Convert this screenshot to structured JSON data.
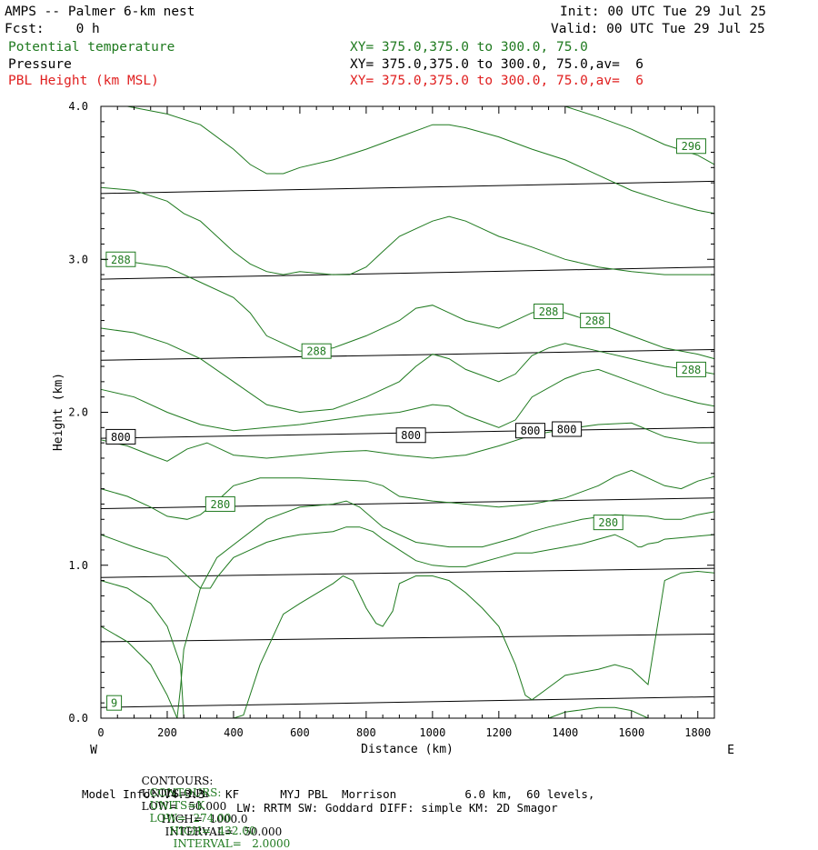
{
  "header": {
    "title": "AMPS -- Palmer 6-km nest",
    "fcst": "Fcst:    0 h",
    "init": "Init: 00 UTC Tue 29 Jul 25",
    "valid": "Valid: 00 UTC Tue 29 Jul 25",
    "fields": [
      {
        "name": "Potential temperature",
        "xy": "XY= 375.0,375.0 to 300.0, 75.0",
        "color": "#1f7a1f"
      },
      {
        "name": "Pressure",
        "xy": "XY= 375.0,375.0 to 300.0, 75.0,av=  6",
        "color": "#000000"
      },
      {
        "name": "PBL Height (km MSL)",
        "xy": "XY= 375.0,375.0 to 300.0, 75.0,av=  6",
        "color": "#e02020"
      }
    ]
  },
  "chart_data": {
    "type": "line",
    "title": "AMPS -- Palmer 6-km nest",
    "xlabel": "Distance (km)",
    "ylabel": "Height (km)",
    "xlim": [
      0,
      1850
    ],
    "ylim": [
      0,
      4.0
    ],
    "x_ticks": [
      "0",
      "200",
      "400",
      "600",
      "800",
      "1000",
      "1200",
      "1400",
      "1600",
      "1800"
    ],
    "y_ticks": [
      "0.0",
      "1.0",
      "2.0",
      "3.0",
      "4.0"
    ],
    "x_ends": {
      "left": "W",
      "right": "E"
    },
    "pressure_isobars": {
      "color": "#000000",
      "units": "hPa",
      "lines": [
        {
          "x": [
            0,
            1850
          ],
          "y": [
            0.07,
            0.14
          ]
        },
        {
          "x": [
            0,
            1850
          ],
          "y": [
            0.5,
            0.55
          ]
        },
        {
          "x": [
            0,
            1850
          ],
          "y": [
            0.92,
            0.98
          ]
        },
        {
          "x": [
            0,
            1850
          ],
          "y": [
            1.37,
            1.44
          ]
        },
        {
          "x": [
            0,
            1850
          ],
          "y": [
            1.83,
            1.9
          ]
        },
        {
          "x": [
            0,
            1850
          ],
          "y": [
            2.34,
            2.41
          ]
        },
        {
          "x": [
            0,
            1850
          ],
          "y": [
            2.87,
            2.95
          ]
        },
        {
          "x": [
            0,
            1850
          ],
          "y": [
            3.43,
            3.51
          ]
        }
      ],
      "labels": [
        {
          "text": "800",
          "x": 60,
          "y": 1.84
        },
        {
          "text": "800",
          "x": 935,
          "y": 1.85
        },
        {
          "text": "800",
          "x": 1295,
          "y": 1.88
        },
        {
          "text": "800",
          "x": 1405,
          "y": 1.89
        }
      ]
    },
    "theta_contours": {
      "color": "#1f7a1f",
      "units": "K",
      "lines": [
        {
          "x": [
            230,
            240,
            250,
            300,
            350,
            500,
            600,
            700,
            740,
            780,
            850,
            950,
            1050,
            1150,
            1250,
            1300,
            1350,
            1450,
            1550,
            1650,
            1700,
            1750,
            1800,
            1850
          ],
          "y": [
            0.0,
            0.2,
            0.45,
            0.85,
            1.05,
            1.3,
            1.38,
            1.4,
            1.42,
            1.38,
            1.25,
            1.15,
            1.12,
            1.12,
            1.18,
            1.22,
            1.25,
            1.3,
            1.33,
            1.32,
            1.3,
            1.3,
            1.33,
            1.35
          ]
        },
        {
          "x": [
            0,
            80,
            150,
            200,
            260,
            300,
            340,
            400,
            480,
            600,
            700,
            800,
            850,
            900,
            1000,
            1100,
            1200,
            1300,
            1400,
            1500,
            1550,
            1600,
            1700,
            1750,
            1800,
            1850
          ],
          "y": [
            1.5,
            1.45,
            1.38,
            1.32,
            1.3,
            1.33,
            1.4,
            1.52,
            1.57,
            1.57,
            1.56,
            1.55,
            1.52,
            1.45,
            1.42,
            1.4,
            1.38,
            1.4,
            1.44,
            1.52,
            1.58,
            1.62,
            1.52,
            1.5,
            1.55,
            1.58
          ]
        },
        {
          "x": [
            0,
            80,
            150,
            200,
            260,
            320,
            400,
            500,
            600,
            700,
            800,
            900,
            1000,
            1100,
            1200,
            1300,
            1400,
            1500,
            1600,
            1700,
            1800,
            1850
          ],
          "y": [
            1.82,
            1.78,
            1.72,
            1.68,
            1.76,
            1.8,
            1.72,
            1.7,
            1.72,
            1.74,
            1.75,
            1.72,
            1.7,
            1.72,
            1.78,
            1.85,
            1.89,
            1.92,
            1.93,
            1.84,
            1.8,
            1.8
          ]
        },
        {
          "x": [
            0,
            100,
            200,
            300,
            400,
            500,
            600,
            700,
            800,
            900,
            1000,
            1050,
            1100,
            1200,
            1250,
            1300,
            1400,
            1450,
            1500,
            1600,
            1700,
            1800,
            1850
          ],
          "y": [
            2.15,
            2.1,
            2.0,
            1.92,
            1.88,
            1.9,
            1.92,
            1.95,
            1.98,
            2.0,
            2.05,
            2.04,
            1.98,
            1.9,
            1.95,
            2.1,
            2.22,
            2.26,
            2.28,
            2.2,
            2.12,
            2.06,
            2.04
          ]
        },
        {
          "x": [
            0,
            100,
            200,
            300,
            400,
            500,
            600,
            700,
            800,
            900,
            950,
            1000,
            1050,
            1100,
            1200,
            1250,
            1300,
            1350,
            1400,
            1500,
            1600,
            1700,
            1800,
            1850
          ],
          "y": [
            2.55,
            2.52,
            2.45,
            2.35,
            2.2,
            2.05,
            2.0,
            2.02,
            2.1,
            2.2,
            2.3,
            2.38,
            2.35,
            2.28,
            2.2,
            2.25,
            2.37,
            2.42,
            2.45,
            2.4,
            2.35,
            2.3,
            2.27,
            2.25
          ]
        },
        {
          "x": [
            0,
            100,
            200,
            300,
            400,
            450,
            500,
            600,
            700,
            800,
            900,
            950,
            1000,
            1050,
            1100,
            1200,
            1250,
            1300,
            1350,
            1400,
            1500,
            1600,
            1700,
            1800,
            1850
          ],
          "y": [
            3.0,
            2.98,
            2.95,
            2.85,
            2.75,
            2.65,
            2.5,
            2.4,
            2.42,
            2.5,
            2.6,
            2.68,
            2.7,
            2.65,
            2.6,
            2.55,
            2.6,
            2.65,
            2.67,
            2.65,
            2.58,
            2.5,
            2.42,
            2.38,
            2.35
          ]
        },
        {
          "x": [
            0,
            100,
            200,
            250,
            300,
            350,
            400,
            450,
            500,
            550,
            600,
            700,
            750,
            800,
            850,
            900,
            1000,
            1050,
            1100,
            1200,
            1300,
            1400,
            1500,
            1600,
            1700,
            1800,
            1850
          ],
          "y": [
            3.47,
            3.45,
            3.38,
            3.3,
            3.25,
            3.15,
            3.05,
            2.97,
            2.92,
            2.9,
            2.92,
            2.9,
            2.9,
            2.95,
            3.05,
            3.15,
            3.25,
            3.28,
            3.25,
            3.15,
            3.08,
            3.0,
            2.95,
            2.92,
            2.9,
            2.9,
            2.9
          ]
        },
        {
          "x": [
            80,
            200,
            300,
            400,
            450,
            500,
            550,
            600,
            700,
            800,
            900,
            1000,
            1050,
            1100,
            1200,
            1300,
            1400,
            1500,
            1600,
            1700,
            1800,
            1850
          ],
          "y": [
            4.0,
            3.95,
            3.88,
            3.72,
            3.62,
            3.56,
            3.56,
            3.6,
            3.65,
            3.72,
            3.8,
            3.88,
            3.88,
            3.86,
            3.8,
            3.72,
            3.65,
            3.55,
            3.45,
            3.38,
            3.32,
            3.3
          ]
        },
        {
          "x": [
            1400,
            1500,
            1600,
            1700,
            1800,
            1850
          ],
          "y": [
            4.0,
            3.93,
            3.85,
            3.75,
            3.68,
            3.62
          ]
        },
        {
          "x": [
            0,
            100,
            200,
            250,
            300,
            330,
            350,
            400,
            450,
            500,
            550,
            600,
            700,
            740,
            780,
            820,
            850,
            900,
            950,
            1000,
            1050,
            1100,
            1150,
            1200,
            1250,
            1300,
            1350,
            1400,
            1450,
            1500,
            1550,
            1600,
            1620,
            1630,
            1650,
            1680,
            1700,
            1750,
            1800,
            1850
          ],
          "y": [
            1.2,
            1.12,
            1.05,
            0.95,
            0.85,
            0.85,
            0.92,
            1.05,
            1.1,
            1.15,
            1.18,
            1.2,
            1.22,
            1.25,
            1.25,
            1.22,
            1.17,
            1.1,
            1.03,
            1.0,
            0.99,
            0.99,
            1.02,
            1.05,
            1.08,
            1.08,
            1.1,
            1.12,
            1.14,
            1.17,
            1.2,
            1.15,
            1.12,
            1.12,
            1.14,
            1.15,
            1.17,
            1.18,
            1.19,
            1.2
          ]
        },
        {
          "x": [
            0,
            80,
            150,
            200,
            240,
            250,
            300,
            350,
            400,
            430,
            480,
            550,
            600,
            700,
            730,
            760,
            800,
            830,
            850,
            880,
            900,
            950,
            1000,
            1050,
            1100,
            1150,
            1200,
            1250,
            1280,
            1300,
            1350,
            1400,
            1450,
            1500,
            1550,
            1600,
            1650,
            1700,
            1750,
            1800,
            1850
          ],
          "y": [
            0.9,
            0.85,
            0.75,
            0.6,
            0.35,
            0.0,
            0.0,
            0.0,
            0.0,
            0.02,
            0.35,
            0.68,
            0.75,
            0.88,
            0.93,
            0.9,
            0.72,
            0.62,
            0.6,
            0.7,
            0.88,
            0.93,
            0.93,
            0.9,
            0.82,
            0.72,
            0.6,
            0.35,
            0.15,
            0.12,
            0.2,
            0.28,
            0.3,
            0.32,
            0.35,
            0.32,
            0.22,
            0.9,
            0.95,
            0.96,
            0.95
          ]
        },
        {
          "x": [
            0,
            80,
            150,
            200,
            220,
            230
          ],
          "y": [
            0.6,
            0.5,
            0.35,
            0.15,
            0.05,
            0.0
          ]
        },
        {
          "x": [
            1350,
            1400,
            1500,
            1550,
            1600,
            1650
          ],
          "y": [
            0.0,
            0.04,
            0.07,
            0.07,
            0.05,
            0.0
          ]
        }
      ],
      "labels": [
        {
          "text": "296",
          "x": 1780,
          "y": 3.74
        },
        {
          "text": "288",
          "x": 60,
          "y": 3.0
        },
        {
          "text": "288",
          "x": 1350,
          "y": 2.66
        },
        {
          "text": "288",
          "x": 1490,
          "y": 2.6
        },
        {
          "text": "288",
          "x": 650,
          "y": 2.4
        },
        {
          "text": "288",
          "x": 1780,
          "y": 2.28
        },
        {
          "text": "280",
          "x": 360,
          "y": 1.4
        },
        {
          "text": "280",
          "x": 1530,
          "y": 1.28
        },
        {
          "text": "9",
          "x": 40,
          "y": 0.1
        }
      ]
    },
    "pbl_height": {
      "color": "#e02020",
      "label": "PBL Height (km MSL)"
    }
  },
  "footer": {
    "pressure_contours": {
      "label": "CONTOURS:",
      "units": "UNITS=hPa",
      "low": "LOW=   50.000",
      "high": "HIGH=  1000.0",
      "interval": "INTERVAL=   50.000"
    },
    "theta_contours": {
      "label": "CONTOURS:",
      "units": "UNITS=K",
      "low": "LOW=  274.00",
      "high": "HIGH=  432.00",
      "interval": "INTERVAL=   2.0000"
    },
    "model_info_1": "Model Info: V4.3.3   KF      MYJ PBL  Morrison          6.0 km,  60 levels,",
    "model_info_2": "LW: RRTM SW: Goddard DIFF: simple KM: 2D Smagor"
  }
}
